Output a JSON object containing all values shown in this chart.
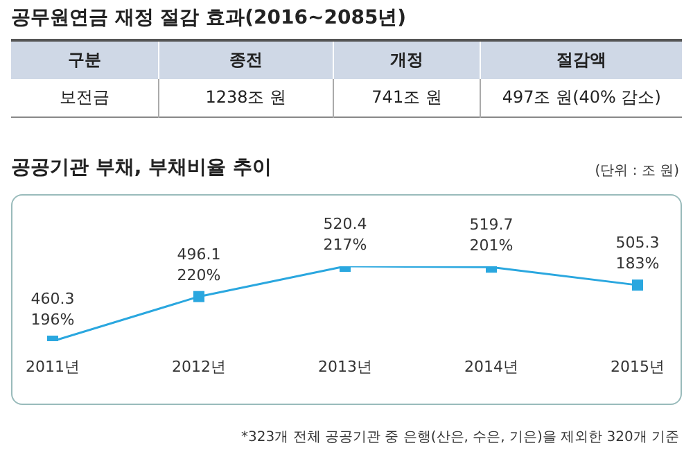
{
  "chart_data": [
    {
      "type": "other",
      "title": "공무원연금 재정 절감 효과(2016~2085년)",
      "annotations": [
        "구분",
        "종전",
        "개정",
        "절감액",
        "보전금",
        "1238조 원",
        "741조 원",
        "497조 원(40% 감소)"
      ]
    },
    {
      "type": "line",
      "title": "공공기관 부채, 부채비율 추이",
      "categories": [
        "2011년",
        "2012년",
        "2013년",
        "2014년",
        "2015년"
      ],
      "series": [
        {
          "color": "#2aa7df",
          "values": [
            460.3,
            496.1,
            520.4,
            519.7,
            505.3
          ]
        }
      ],
      "data_labels": true,
      "marker": "square",
      "line_style": "solid",
      "grid": false,
      "legend": false,
      "annotations": [
        "(단위 : 조 원)",
        "*323개 전체 공공기관 중 은행(산은, 수은, 기은)을 제외한 320개 기준",
        {
          "text": "196%",
          "x": "2011년",
          "y": 460.3
        },
        {
          "text": "220%",
          "x": "2012년",
          "y": 496.1
        },
        {
          "text": "217%",
          "x": "2013년",
          "y": 520.4
        },
        {
          "text": "201%",
          "x": "2014년",
          "y": 519.7
        },
        {
          "text": "183%",
          "x": "2015년",
          "y": 505.3
        }
      ]
    }
  ]
}
